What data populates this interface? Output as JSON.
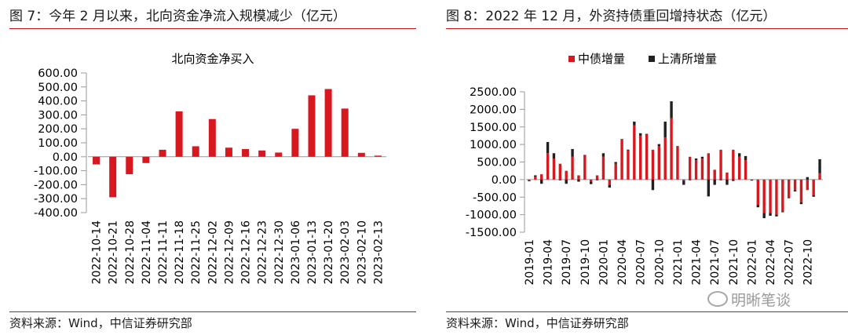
{
  "left": {
    "figure_title": "图 7：今年 2 月以来，北向资金净流入规模减少（亿元）",
    "source": "资料来源：Wind，中信证券研究部"
  },
  "right": {
    "figure_title": "图 8：2022 年 12 月，外资持债重回增持状态（亿元）",
    "source": "资料来源：Wind，中信证券研究部"
  },
  "watermark": {
    "text": "明晰笔谈",
    "icon": "wechat-icon"
  },
  "colors": {
    "red": "#d7191f",
    "black": "#231f20",
    "rule": "#c0131a"
  },
  "chart_data": [
    {
      "type": "bar",
      "title": "北向资金净买入",
      "xlabel": "",
      "ylabel": "",
      "categories": [
        "2022-10-14",
        "2022-10-21",
        "2022-10-28",
        "2022-11-04",
        "2022-11-11",
        "2022-11-18",
        "2022-11-25",
        "2022-12-02",
        "2022-12-09",
        "2022-12-16",
        "2022-12-23",
        "2022-12-30",
        "2023-01-06",
        "2023-01-13",
        "2023-01-20",
        "2023-02-03",
        "2023-02-10",
        "2023-02-13"
      ],
      "values": [
        -55,
        -290,
        -125,
        -45,
        50,
        325,
        75,
        270,
        65,
        55,
        45,
        30,
        200,
        440,
        485,
        345,
        28,
        8
      ],
      "ylim": [
        -400,
        600
      ],
      "yticks": [
        "600.00",
        "500.00",
        "400.00",
        "300.00",
        "200.00",
        "100.00",
        "0.00",
        "-100.00",
        "-200.00",
        "-300.00",
        "-400.00"
      ],
      "grid": false,
      "color": "#d7191f"
    },
    {
      "type": "bar",
      "stacked": true,
      "title": "",
      "xlabel": "",
      "ylabel": "",
      "legend": "top",
      "ylim": [
        -1500,
        2500
      ],
      "yticks": [
        "2500.00",
        "2000.00",
        "1500.00",
        "1000.00",
        "500.00",
        "0.00",
        "-500.00",
        "-1000.00",
        "-1500.00"
      ],
      "xtick_labels": [
        "2019-01",
        "2019-04",
        "2019-07",
        "2019-10",
        "2020-01",
        "2020-04",
        "2020-07",
        "2020-10",
        "2021-01",
        "2021-04",
        "2021-07",
        "2021-10",
        "2022-01",
        "2022-04",
        "2022-07",
        "2022-10"
      ],
      "categories": [
        "2019-01",
        "2019-02",
        "2019-03",
        "2019-04",
        "2019-05",
        "2019-06",
        "2019-07",
        "2019-08",
        "2019-09",
        "2019-10",
        "2019-11",
        "2019-12",
        "2020-01",
        "2020-02",
        "2020-03",
        "2020-04",
        "2020-05",
        "2020-06",
        "2020-07",
        "2020-08",
        "2020-09",
        "2020-10",
        "2020-11",
        "2020-12",
        "2021-01",
        "2021-02",
        "2021-03",
        "2021-04",
        "2021-05",
        "2021-06",
        "2021-07",
        "2021-08",
        "2021-09",
        "2021-10",
        "2021-11",
        "2021-12",
        "2022-01",
        "2022-02",
        "2022-03",
        "2022-04",
        "2022-05",
        "2022-06",
        "2022-07",
        "2022-08",
        "2022-09",
        "2022-10",
        "2022-11",
        "2022-12"
      ],
      "series": [
        {
          "name": "中债增量",
          "color": "#d7191f",
          "values": [
            -30,
            80,
            150,
            750,
            600,
            450,
            250,
            650,
            120,
            700,
            -60,
            120,
            650,
            -150,
            450,
            1150,
            850,
            1550,
            1250,
            1300,
            850,
            950,
            1200,
            1750,
            950,
            -30,
            650,
            550,
            600,
            750,
            280,
            850,
            200,
            850,
            650,
            550,
            -10,
            -720,
            -950,
            -950,
            -1000,
            -900,
            -500,
            -300,
            -650,
            -300,
            -450,
            180
          ]
        },
        {
          "name": "上清所增量",
          "color": "#231f20",
          "values": [
            -20,
            40,
            -120,
            320,
            150,
            -20,
            -120,
            220,
            -60,
            0,
            -70,
            -20,
            100,
            -80,
            50,
            0,
            0,
            100,
            70,
            0,
            -300,
            60,
            450,
            480,
            0,
            -120,
            -20,
            50,
            50,
            -480,
            -150,
            -20,
            -150,
            -40,
            100,
            120,
            -20,
            -70,
            -150,
            -80,
            -50,
            -30,
            -30,
            -40,
            -50,
            70,
            -40,
            400
          ]
        }
      ]
    }
  ]
}
